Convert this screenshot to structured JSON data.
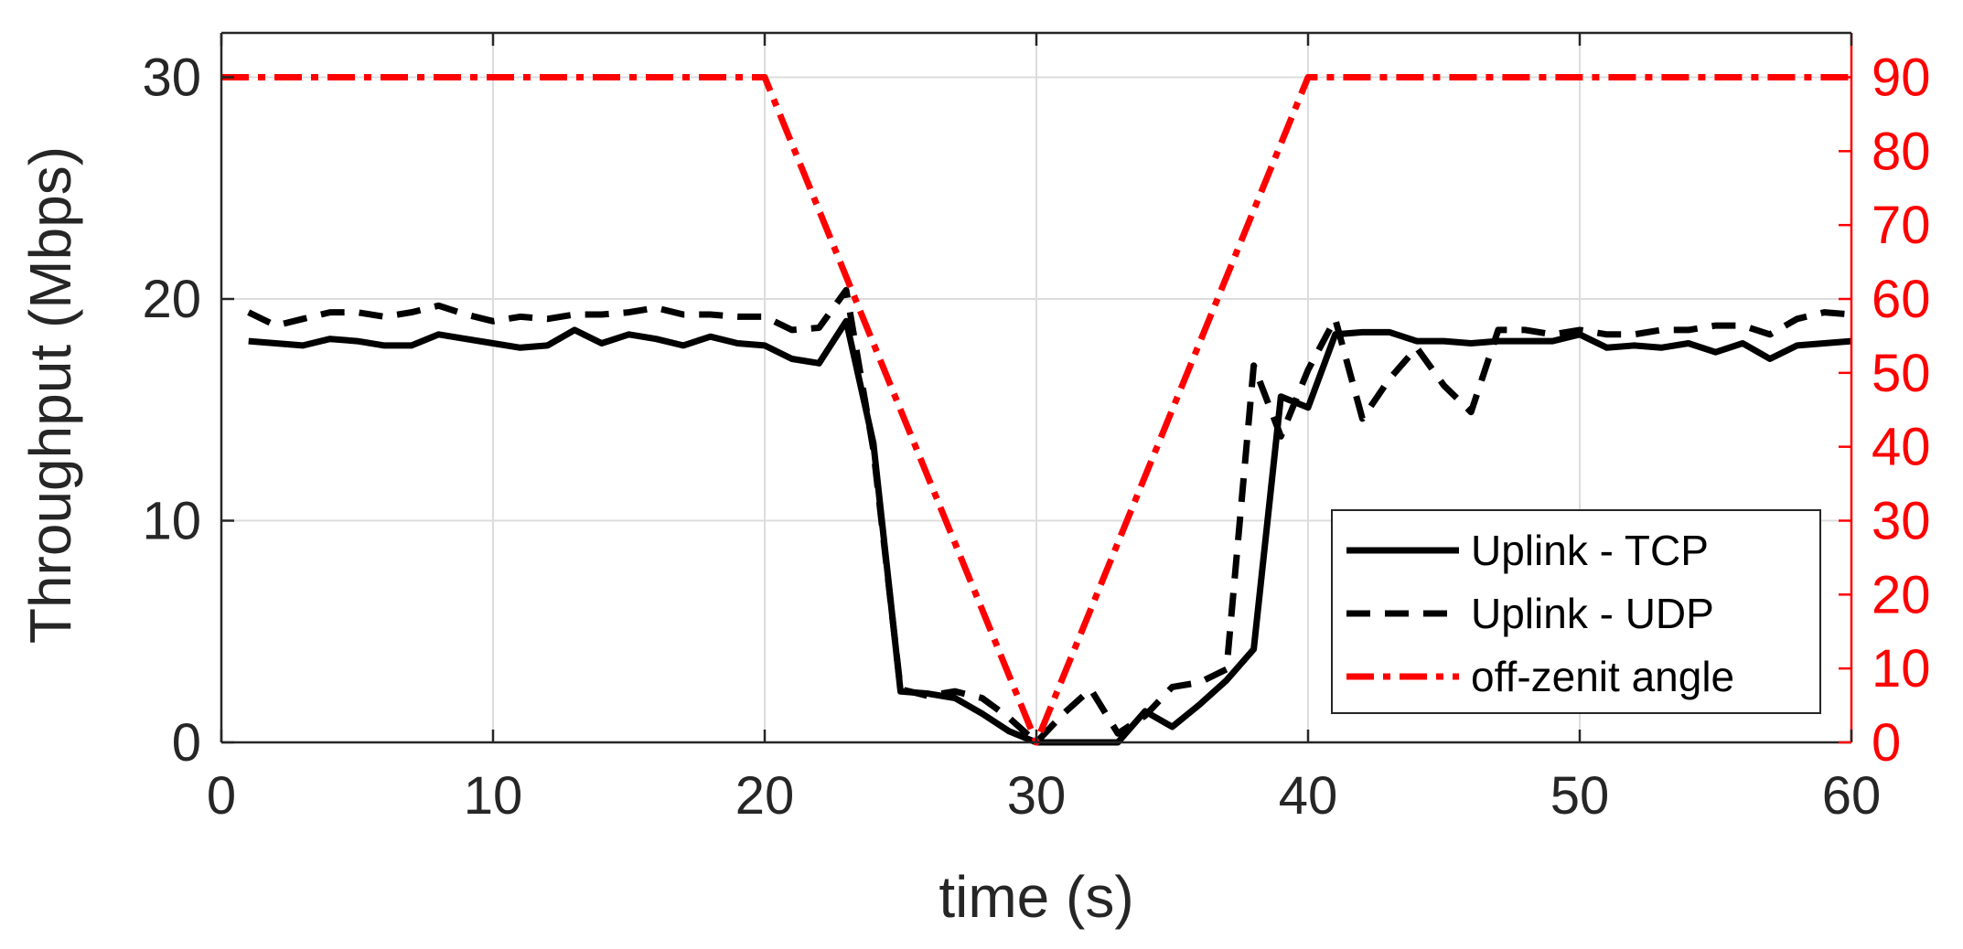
{
  "chart_data": {
    "type": "line",
    "title": "",
    "xlabel": "time (s)",
    "ylabel": "Throughput (Mbps)",
    "y2label": "",
    "xlim": [
      0,
      60
    ],
    "ylim": [
      0,
      32
    ],
    "y2lim": [
      0,
      96
    ],
    "grid": true,
    "legend_position": "bottom-right",
    "x_ticks": [
      0,
      10,
      20,
      30,
      40,
      50,
      60
    ],
    "x_tick_labels": [
      "0",
      "10",
      "20",
      "30",
      "40",
      "50",
      "60"
    ],
    "y_ticks": [
      0,
      10,
      20,
      30
    ],
    "y_tick_labels": [
      "0",
      "10",
      "20",
      "30"
    ],
    "y2_ticks": [
      0,
      10,
      20,
      30,
      40,
      50,
      60,
      70,
      80,
      90
    ],
    "y2_tick_labels": [
      "0",
      "10",
      "20",
      "30",
      "40",
      "50",
      "60",
      "70",
      "80",
      "90"
    ],
    "colors": {
      "tcp": "#000000",
      "udp": "#000000",
      "angle": "#ff0000",
      "axis": "#262626",
      "grid": "#dcdcdc"
    },
    "series": [
      {
        "name": "Uplink - TCP",
        "axis": "left",
        "style": "solid",
        "x": [
          1,
          2,
          3,
          4,
          5,
          6,
          7,
          8,
          9,
          10,
          11,
          12,
          13,
          14,
          15,
          16,
          17,
          18,
          19,
          20,
          21,
          22,
          23,
          24,
          25,
          26,
          27,
          28,
          29,
          30,
          31,
          32,
          33,
          34,
          35,
          36,
          37,
          38,
          39,
          40,
          41,
          42,
          43,
          44,
          45,
          46,
          47,
          48,
          49,
          50,
          51,
          52,
          53,
          54,
          55,
          56,
          57,
          58,
          59,
          60
        ],
        "values": [
          18.1,
          18.0,
          17.9,
          18.2,
          18.1,
          17.9,
          17.9,
          18.4,
          18.2,
          18.0,
          17.8,
          17.9,
          18.6,
          18.0,
          18.4,
          18.2,
          17.9,
          18.3,
          18.0,
          17.9,
          17.3,
          17.1,
          19.0,
          13.5,
          2.3,
          2.2,
          2.0,
          1.3,
          0.5,
          0.0,
          0.0,
          0.0,
          0.0,
          1.4,
          0.7,
          1.7,
          2.8,
          4.2,
          15.6,
          15.1,
          18.4,
          18.5,
          18.5,
          18.1,
          18.1,
          18.0,
          18.1,
          18.1,
          18.1,
          18.4,
          17.8,
          17.9,
          17.8,
          18.0,
          17.6,
          18.0,
          17.3,
          17.9,
          18.0,
          18.1
        ]
      },
      {
        "name": "Uplink - UDP",
        "axis": "left",
        "style": "dashed",
        "x": [
          1,
          2,
          3,
          4,
          5,
          6,
          7,
          8,
          9,
          10,
          11,
          12,
          13,
          14,
          15,
          16,
          17,
          18,
          19,
          20,
          21,
          22,
          23,
          24,
          25,
          26,
          27,
          28,
          29,
          30,
          31,
          32,
          33,
          34,
          35,
          36,
          37,
          38,
          39,
          40,
          41,
          42,
          43,
          44,
          45,
          46,
          47,
          48,
          49,
          50,
          51,
          52,
          53,
          54,
          55,
          56,
          57,
          58,
          59,
          60
        ],
        "values": [
          19.4,
          18.8,
          19.1,
          19.4,
          19.4,
          19.2,
          19.4,
          19.7,
          19.3,
          19.0,
          19.2,
          19.1,
          19.3,
          19.3,
          19.4,
          19.6,
          19.3,
          19.3,
          19.2,
          19.2,
          18.6,
          18.7,
          20.4,
          13.2,
          2.4,
          2.1,
          2.3,
          2.0,
          1.1,
          0.0,
          1.3,
          2.4,
          0.4,
          1.2,
          2.5,
          2.7,
          3.3,
          17.0,
          13.8,
          16.8,
          19.1,
          14.6,
          16.4,
          17.8,
          16.1,
          14.9,
          18.6,
          18.6,
          18.4,
          18.6,
          18.4,
          18.4,
          18.6,
          18.6,
          18.8,
          18.8,
          18.4,
          19.1,
          19.4,
          19.3
        ]
      },
      {
        "name": "off-zenit angle",
        "axis": "right",
        "style": "dashdot",
        "x": [
          0,
          20,
          30,
          40,
          60
        ],
        "values": [
          90,
          90,
          0,
          90,
          90
        ]
      }
    ]
  }
}
